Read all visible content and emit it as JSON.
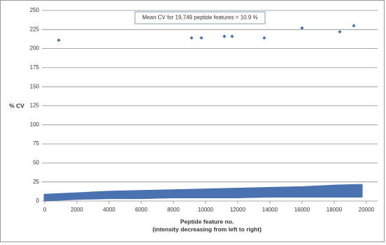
{
  "chart_data": {
    "type": "scatter",
    "annotation": "Mean CV for 19,749 peptide features = 10.9 %",
    "y_label": "% CV",
    "x_label": [
      "Peptide feature  no.",
      "(intensity decreasing from  left to right)"
    ],
    "xlim": [
      0,
      20700
    ],
    "ylim": [
      0,
      250
    ],
    "xticks": [
      0,
      2000,
      4000,
      6000,
      8000,
      10000,
      12000,
      14000,
      16000,
      18000,
      20000
    ],
    "yticks": [
      0,
      25,
      50,
      75,
      100,
      125,
      150,
      175,
      200,
      225,
      250
    ],
    "grid": true,
    "series": [
      {
        "color": "#4a72b0",
        "x": [
          870,
          9130,
          9740,
          11170,
          11650,
          13650,
          16000,
          18350,
          19220
        ],
        "values": [
          211,
          214,
          214,
          216,
          216,
          214,
          227,
          222,
          230
        ]
      }
    ],
    "band": {
      "color": "#4a72b0",
      "x": [
        0,
        2000,
        4000,
        6000,
        8000,
        10000,
        12000,
        14000,
        16000,
        18000,
        19700
      ],
      "upper": [
        8,
        10,
        12,
        13,
        14,
        15,
        16,
        17,
        18,
        20,
        21
      ],
      "lower": [
        1,
        3,
        4,
        4,
        5,
        5,
        5,
        6,
        6,
        6,
        6
      ]
    }
  }
}
